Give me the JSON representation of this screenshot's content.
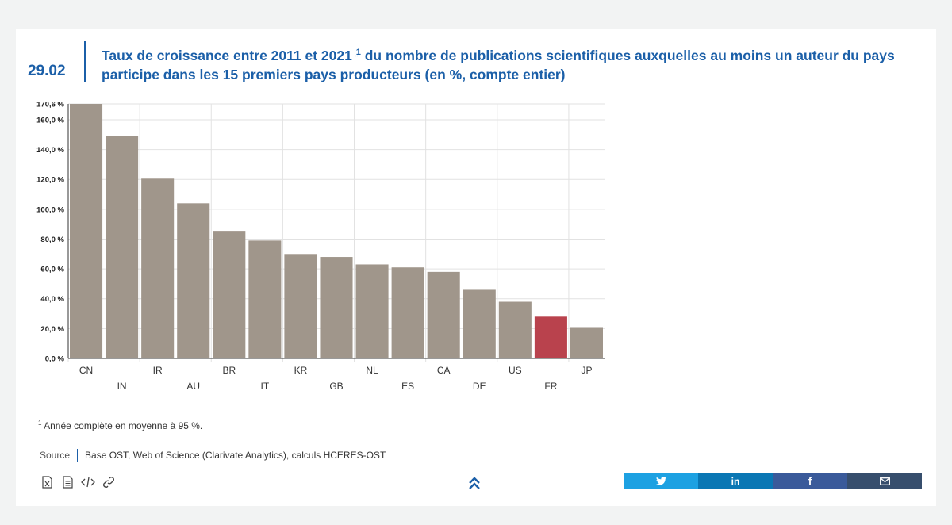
{
  "figure": {
    "number": "29.02",
    "title_part1": "Taux de croissance entre 2011 et 2021",
    "title_sup": "1",
    "title_part2": " du nombre de publications scientifiques auxquelles au moins un auteur du pays participe dans les 15 premiers pays producteurs (en %, compte entier)"
  },
  "chart_data": {
    "type": "bar",
    "title": "",
    "xlabel": "",
    "ylabel": "",
    "categories": [
      "CN",
      "IN",
      "IR",
      "AU",
      "BR",
      "IT",
      "KR",
      "GB",
      "NL",
      "ES",
      "CA",
      "DE",
      "US",
      "FR",
      "JP"
    ],
    "values": [
      170.6,
      149,
      120.5,
      104,
      85.5,
      79,
      70,
      68,
      63,
      61,
      58,
      46,
      38,
      28,
      21
    ],
    "highlight_category": "FR",
    "colors": {
      "bar": "#a0968b",
      "highlight": "#b9424d"
    },
    "ylim": [
      0,
      170.6
    ],
    "yticks": [
      0,
      20,
      40,
      60,
      80,
      100,
      120,
      140,
      160,
      170.6
    ],
    "ytick_labels": [
      "0,0 %",
      "20,0 %",
      "40,0 %",
      "60,0 %",
      "80,0 %",
      "100,0 %",
      "120,0 %",
      "140,0 %",
      "160,0 %",
      "170,6 %"
    ],
    "grid": true,
    "legend": "none"
  },
  "footnote": {
    "marker": "1",
    "text": "Année complète en moyenne à 95 %."
  },
  "source": {
    "label": "Source",
    "text": "Base OST, Web of Science (Clarivate Analytics), calculs HCERES-OST"
  },
  "tools": [
    "excel-download-icon",
    "document-icon",
    "embed-code-icon",
    "link-icon"
  ],
  "back_to_top_icon": "double-chevron-up-icon",
  "share": [
    {
      "name": "twitter",
      "icon": "twitter-icon",
      "color": "#1da1e2"
    },
    {
      "name": "linkedin",
      "icon": "linkedin-icon",
      "color": "#0a77b4"
    },
    {
      "name": "facebook",
      "icon": "facebook-icon",
      "color": "#3a5a9a"
    },
    {
      "name": "email",
      "icon": "mail-icon",
      "color": "#374e6d"
    }
  ]
}
